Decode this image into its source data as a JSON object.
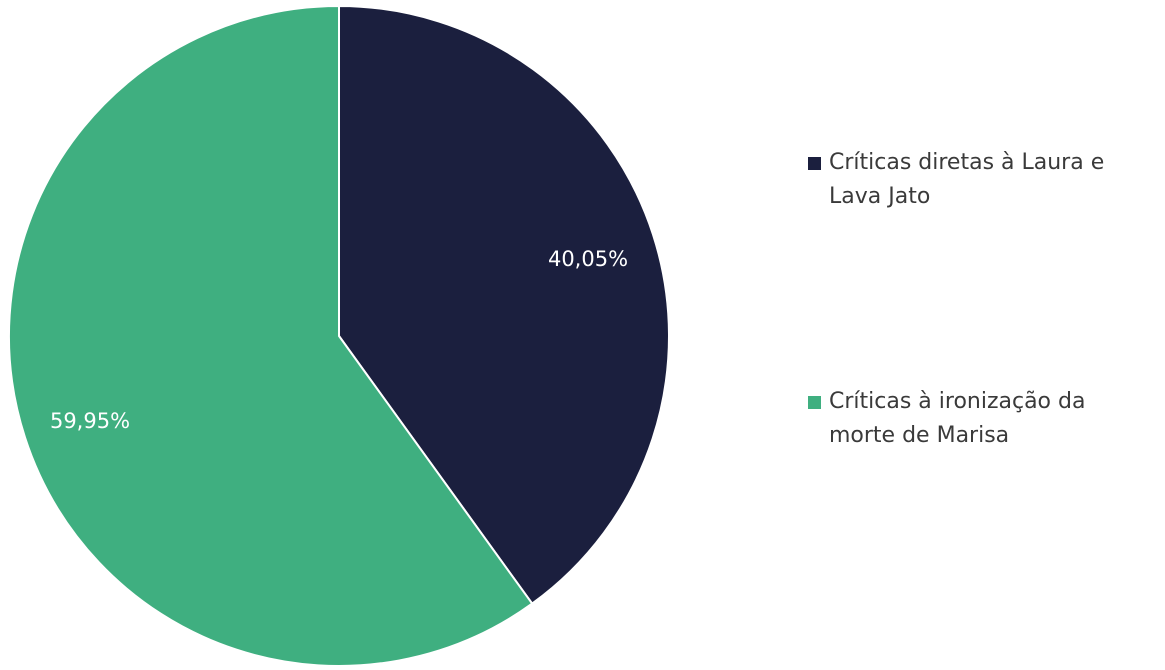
{
  "chart_data": {
    "type": "pie",
    "categories": [
      "Críticas diretas à Laura e Lava Jato",
      "Críticas à ironização da morte de Marisa"
    ],
    "values": [
      40.05,
      59.95
    ],
    "value_labels": [
      "40,05%",
      "59,95%"
    ],
    "colors": [
      "#1b1f3e",
      "#3faf80"
    ],
    "legend_position": "right",
    "start": "top, clockwise"
  }
}
